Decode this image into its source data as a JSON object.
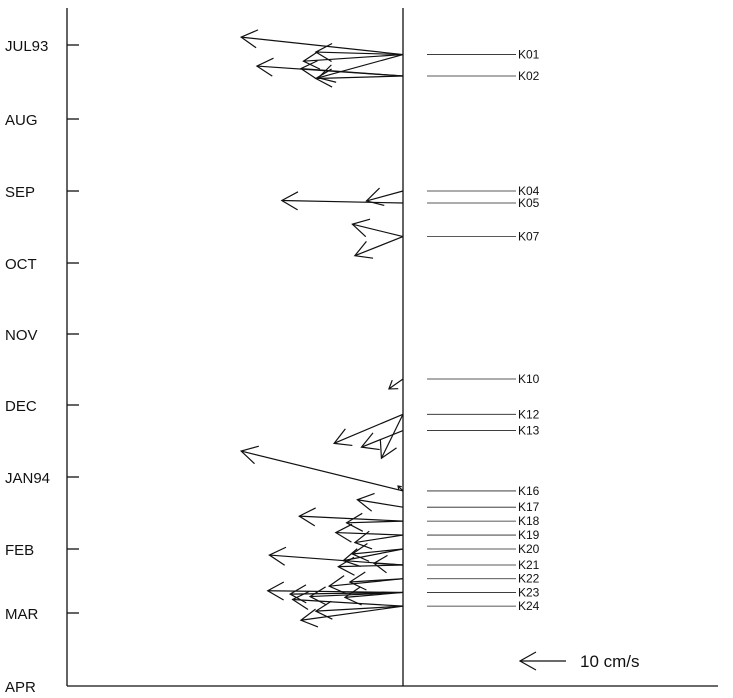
{
  "chart_data": {
    "type": "vector-stick-plot",
    "title": "",
    "xlabel": "",
    "ylabel": "",
    "time_axis": {
      "ticks": [
        "JUL93",
        "AUG",
        "SEP",
        "OCT",
        "NOV",
        "DEC",
        "JAN94",
        "FEB",
        "MAR",
        "APR"
      ],
      "range": [
        "1993-07-01",
        "1994-04-01"
      ]
    },
    "scale": {
      "label": "10 cm/s",
      "speed": 10,
      "direction": "west"
    },
    "stations": [
      {
        "id": "K01",
        "date": "1993-07-05",
        "vectors": [
          {
            "u": -19.5,
            "v": 2.1
          },
          {
            "u": -12.0,
            "v": -0.8
          },
          {
            "u": -10.2,
            "v": -2.8
          },
          {
            "u": -10.5,
            "v": 0.3
          }
        ]
      },
      {
        "id": "K02",
        "date": "1993-07-14",
        "vectors": [
          {
            "u": -17.6,
            "v": 1.2
          },
          {
            "u": -12.3,
            "v": 0.9
          },
          {
            "u": -10.5,
            "v": -0.3
          }
        ]
      },
      {
        "id": "K04",
        "date": "1993-09-01",
        "vectors": [
          {
            "u": -4.4,
            "v": -1.2
          }
        ]
      },
      {
        "id": "K05",
        "date": "1993-09-06",
        "vectors": [
          {
            "u": -14.6,
            "v": 0.3
          }
        ]
      },
      {
        "id": "K07",
        "date": "1993-09-20",
        "vectors": [
          {
            "u": -6.1,
            "v": 1.5
          },
          {
            "u": -5.8,
            "v": -2.3
          }
        ]
      },
      {
        "id": "K10",
        "date": "1993-11-20",
        "vectors": [
          {
            "u": -1.7,
            "v": -1.2
          }
        ]
      },
      {
        "id": "K12",
        "date": "1993-12-05",
        "vectors": [
          {
            "u": -8.3,
            "v": -3.5
          },
          {
            "u": -2.6,
            "v": -5.3
          }
        ]
      },
      {
        "id": "K13",
        "date": "1993-12-12",
        "vectors": [
          {
            "u": -5.0,
            "v": -2.0
          }
        ]
      },
      {
        "id": "K16",
        "date": "1994-01-07",
        "vectors": [
          {
            "u": -19.5,
            "v": 4.8
          },
          {
            "u": -0.6,
            "v": 0.6
          }
        ]
      },
      {
        "id": "K17",
        "date": "1994-01-14",
        "vectors": [
          {
            "u": -5.5,
            "v": 0.9
          }
        ]
      },
      {
        "id": "K18",
        "date": "1994-01-20",
        "vectors": [
          {
            "u": -12.5,
            "v": 0.6
          },
          {
            "u": -6.8,
            "v": -0.2
          }
        ]
      },
      {
        "id": "K19",
        "date": "1994-01-26",
        "vectors": [
          {
            "u": -8.1,
            "v": 0.3
          },
          {
            "u": -5.8,
            "v": -0.9
          }
        ]
      },
      {
        "id": "K20",
        "date": "1994-02-01",
        "vectors": [
          {
            "u": -6.1,
            "v": -0.6
          },
          {
            "u": -7.2,
            "v": -1.4
          }
        ]
      },
      {
        "id": "K21",
        "date": "1994-02-08",
        "vectors": [
          {
            "u": -16.1,
            "v": 1.2
          },
          {
            "u": -7.8,
            "v": -0.2
          },
          {
            "u": -3.5,
            "v": 0.2
          }
        ]
      },
      {
        "id": "K22",
        "date": "1994-02-14",
        "vectors": [
          {
            "u": -8.9,
            "v": -0.9
          },
          {
            "u": -6.4,
            "v": -0.4
          }
        ]
      },
      {
        "id": "K23",
        "date": "1994-02-20",
        "vectors": [
          {
            "u": -16.3,
            "v": 0.2
          },
          {
            "u": -13.6,
            "v": -0.2
          },
          {
            "u": -11.2,
            "v": -0.5
          },
          {
            "u": -7.0,
            "v": -0.6
          }
        ]
      },
      {
        "id": "K24",
        "date": "1994-02-26",
        "vectors": [
          {
            "u": -13.3,
            "v": 0.8
          },
          {
            "u": -10.5,
            "v": -0.6
          },
          {
            "u": -12.3,
            "v": -1.7
          }
        ]
      }
    ]
  }
}
